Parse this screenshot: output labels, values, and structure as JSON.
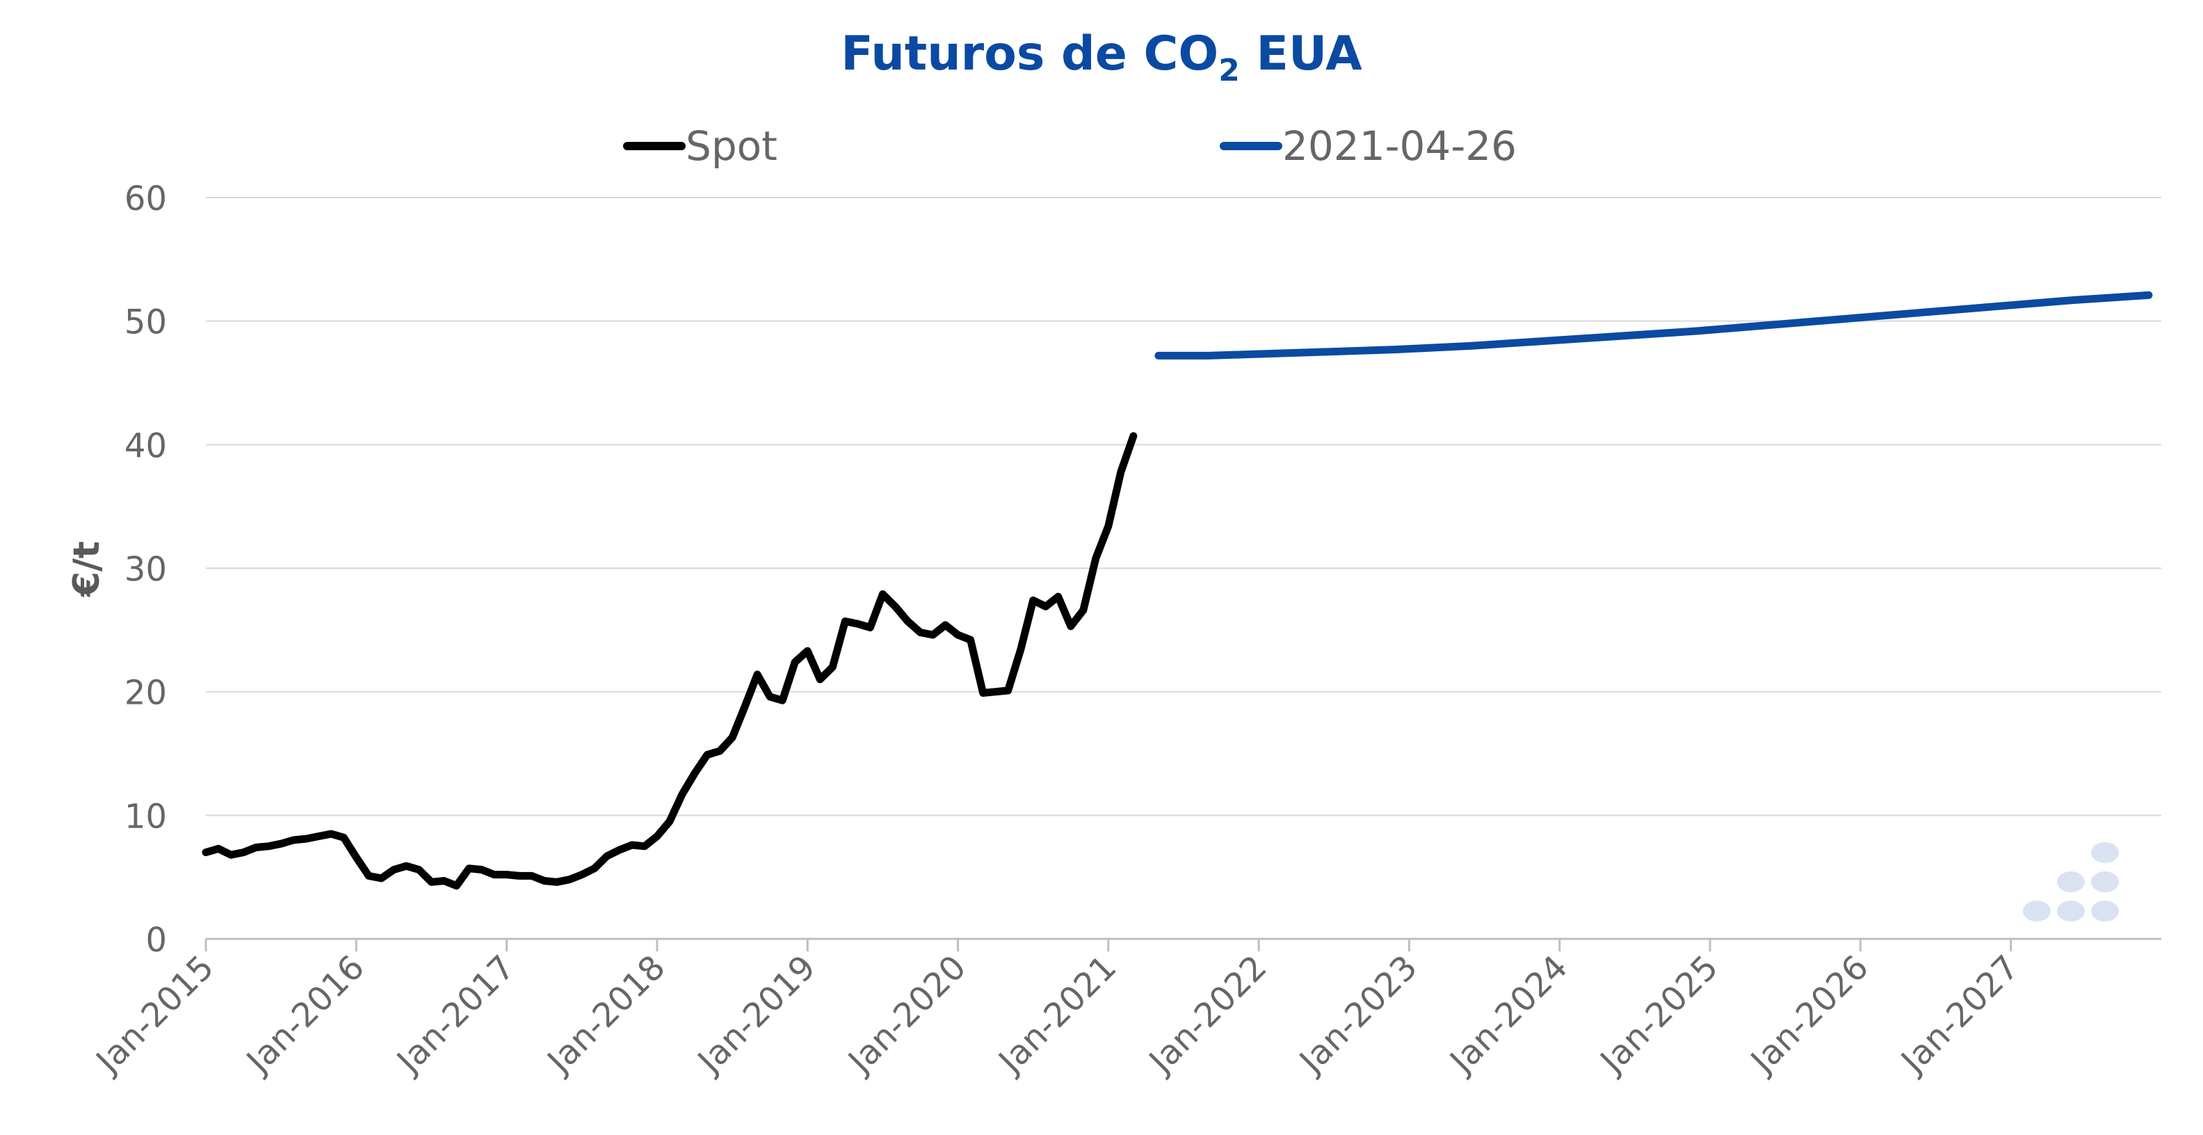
{
  "title": {
    "main": "Futuros de CO",
    "subscript": "2",
    "suffix": " EUA"
  },
  "colors": {
    "spot": "#000000",
    "futures": "#0b4aa2",
    "grid": "#d9d9d9",
    "axis_text": "#666666",
    "watermark": "#dae3f1"
  },
  "watermark_icon": "dots-logo-icon",
  "chart_data": {
    "type": "line",
    "ylabel": "€/t",
    "ylim": [
      0,
      60
    ],
    "yticks": [
      0,
      10,
      20,
      30,
      40,
      50,
      60
    ],
    "xlim": [
      "2015-01",
      "2028-01"
    ],
    "xticks": [
      "Jan-2015",
      "Jan-2016",
      "Jan-2017",
      "Jan-2018",
      "Jan-2019",
      "Jan-2020",
      "Jan-2021",
      "Jan-2022",
      "Jan-2023",
      "Jan-2024",
      "Jan-2025",
      "Jan-2026",
      "Jan-2027"
    ],
    "grid": true,
    "legend_position": "top",
    "series": [
      {
        "name": "Spot",
        "points": [
          [
            "2015-01",
            7.0
          ],
          [
            "2015-02",
            7.3
          ],
          [
            "2015-03",
            6.8
          ],
          [
            "2015-04",
            7.0
          ],
          [
            "2015-05",
            7.4
          ],
          [
            "2015-06",
            7.5
          ],
          [
            "2015-07",
            7.7
          ],
          [
            "2015-08",
            8.0
          ],
          [
            "2015-09",
            8.1
          ],
          [
            "2015-10",
            8.3
          ],
          [
            "2015-11",
            8.5
          ],
          [
            "2015-12",
            8.2
          ],
          [
            "2016-01",
            6.6
          ],
          [
            "2016-02",
            5.1
          ],
          [
            "2016-03",
            4.9
          ],
          [
            "2016-04",
            5.6
          ],
          [
            "2016-05",
            5.9
          ],
          [
            "2016-06",
            5.6
          ],
          [
            "2016-07",
            4.6
          ],
          [
            "2016-08",
            4.7
          ],
          [
            "2016-09",
            4.3
          ],
          [
            "2016-10",
            5.7
          ],
          [
            "2016-11",
            5.6
          ],
          [
            "2016-12",
            5.2
          ],
          [
            "2017-01",
            5.2
          ],
          [
            "2017-02",
            5.1
          ],
          [
            "2017-03",
            5.1
          ],
          [
            "2017-04",
            4.7
          ],
          [
            "2017-05",
            4.6
          ],
          [
            "2017-06",
            4.8
          ],
          [
            "2017-07",
            5.2
          ],
          [
            "2017-08",
            5.7
          ],
          [
            "2017-09",
            6.7
          ],
          [
            "2017-10",
            7.2
          ],
          [
            "2017-11",
            7.6
          ],
          [
            "2017-12",
            7.5
          ],
          [
            "2018-01",
            8.3
          ],
          [
            "2018-02",
            9.5
          ],
          [
            "2018-03",
            11.7
          ],
          [
            "2018-04",
            13.4
          ],
          [
            "2018-05",
            14.9
          ],
          [
            "2018-06",
            15.2
          ],
          [
            "2018-07",
            16.3
          ],
          [
            "2018-08",
            18.8
          ],
          [
            "2018-09",
            21.4
          ],
          [
            "2018-10",
            19.6
          ],
          [
            "2018-11",
            19.3
          ],
          [
            "2018-12",
            22.4
          ],
          [
            "2019-01",
            23.3
          ],
          [
            "2019-02",
            21.0
          ],
          [
            "2019-03",
            22.0
          ],
          [
            "2019-04",
            25.7
          ],
          [
            "2019-05",
            25.5
          ],
          [
            "2019-06",
            25.2
          ],
          [
            "2019-07",
            27.9
          ],
          [
            "2019-08",
            26.9
          ],
          [
            "2019-09",
            25.7
          ],
          [
            "2019-10",
            24.8
          ],
          [
            "2019-11",
            24.6
          ],
          [
            "2019-12",
            25.4
          ],
          [
            "2020-01",
            24.6
          ],
          [
            "2020-02",
            24.2
          ],
          [
            "2020-03",
            19.9
          ],
          [
            "2020-04",
            20.0
          ],
          [
            "2020-05",
            20.1
          ],
          [
            "2020-06",
            23.4
          ],
          [
            "2020-07",
            27.4
          ],
          [
            "2020-08",
            26.9
          ],
          [
            "2020-09",
            27.7
          ],
          [
            "2020-10",
            25.3
          ],
          [
            "2020-11",
            26.6
          ],
          [
            "2020-12",
            30.8
          ],
          [
            "2021-01",
            33.4
          ],
          [
            "2021-02",
            37.8
          ],
          [
            "2021-03",
            40.7
          ]
        ]
      },
      {
        "name": "2021-04-26",
        "points": [
          [
            "2021-05",
            47.2
          ],
          [
            "2021-06",
            47.2
          ],
          [
            "2021-09",
            47.2
          ],
          [
            "2021-12",
            47.3
          ],
          [
            "2022-06",
            47.5
          ],
          [
            "2022-12",
            47.7
          ],
          [
            "2023-06",
            48.0
          ],
          [
            "2023-12",
            48.4
          ],
          [
            "2024-06",
            48.8
          ],
          [
            "2024-12",
            49.2
          ],
          [
            "2025-06",
            49.7
          ],
          [
            "2025-12",
            50.2
          ],
          [
            "2026-06",
            50.7
          ],
          [
            "2026-12",
            51.2
          ],
          [
            "2027-06",
            51.7
          ],
          [
            "2027-12",
            52.1
          ]
        ]
      }
    ]
  }
}
